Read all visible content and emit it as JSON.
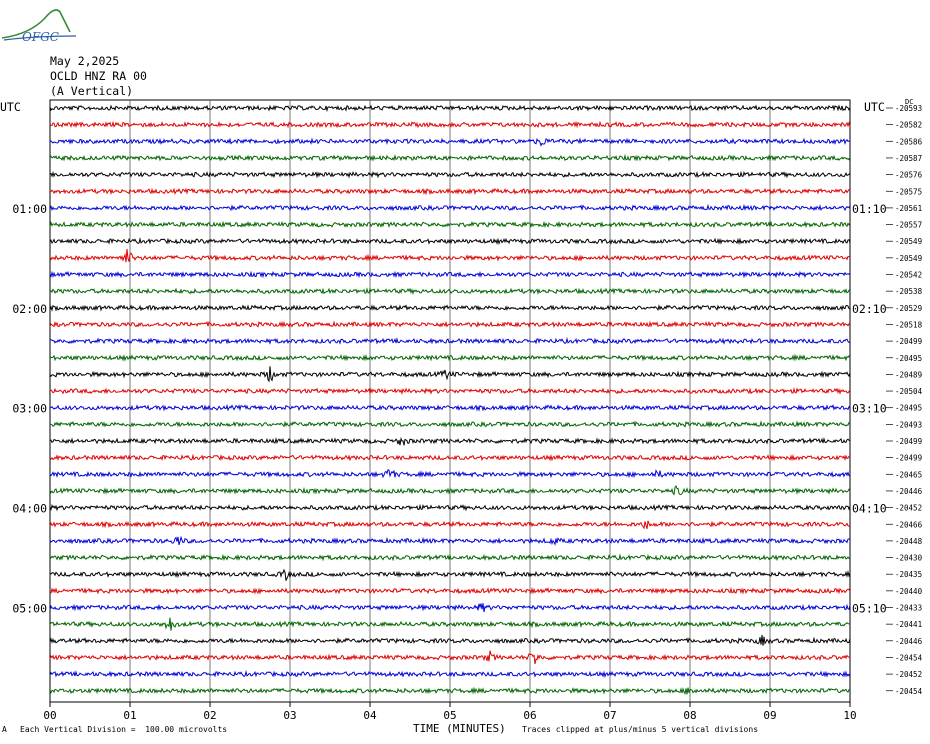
{
  "logo_text": "OFGC",
  "header": {
    "date": "May 2,2025",
    "station": "OCLD HNZ RA 00",
    "component": "(A Vertical)"
  },
  "left_axis_label": "UTC",
  "right_axis_label": "UTC",
  "dc_label": "DC",
  "footer": {
    "mark": "A",
    "scale": "Each Vertical Division =  100.00 microvolts",
    "clip": "Traces clipped at plus/minus 5 vertical divisions"
  },
  "chart_data": {
    "type": "line",
    "xlabel": "TIME (MINUTES)",
    "xlim": [
      0,
      10
    ],
    "x_ticks": [
      "00",
      "01",
      "02",
      "03",
      "04",
      "05",
      "06",
      "07",
      "08",
      "09",
      "10"
    ],
    "left_time_labels": [
      {
        "row": 6,
        "label": "01:00"
      },
      {
        "row": 12,
        "label": "02:00"
      },
      {
        "row": 18,
        "label": "03:00"
      },
      {
        "row": 24,
        "label": "04:00"
      },
      {
        "row": 30,
        "label": "05:00"
      }
    ],
    "right_time_labels": [
      {
        "row": 6,
        "label": "01:10"
      },
      {
        "row": 12,
        "label": "02:10"
      },
      {
        "row": 18,
        "label": "03:10"
      },
      {
        "row": 24,
        "label": "04:10"
      },
      {
        "row": 30,
        "label": "05:10"
      }
    ],
    "trace_colors": [
      "#000000",
      "#e00000",
      "#0000d8",
      "#006400"
    ],
    "dc_offsets": [
      "-20593",
      "-20582",
      "-20586",
      "-20587",
      "-20576",
      "-20575",
      "-20561",
      "-20557",
      "-20549",
      "-20549",
      "-20542",
      "-20538",
      "-20529",
      "-20518",
      "-20499",
      "-20495",
      "-20489",
      "-20504",
      "-20495",
      "-20493",
      "-20499",
      "-20499",
      "-20465",
      "-20446",
      "-20452",
      "-20466",
      "-20448",
      "-20430",
      "-20435",
      "-20440",
      "-20433",
      "-20441",
      "-20446",
      "-20454",
      "-20452",
      "-20454"
    ],
    "events": [
      {
        "row": 9,
        "minute": 0.97,
        "amp": 10
      },
      {
        "row": 2,
        "minute": 6.15,
        "amp": 5
      },
      {
        "row": 16,
        "minute": 2.75,
        "amp": 9
      },
      {
        "row": 16,
        "minute": 4.95,
        "amp": 5
      },
      {
        "row": 20,
        "minute": 4.4,
        "amp": 6
      },
      {
        "row": 22,
        "minute": 4.25,
        "amp": 8
      },
      {
        "row": 22,
        "minute": 7.6,
        "amp": 4
      },
      {
        "row": 23,
        "minute": 7.85,
        "amp": 6
      },
      {
        "row": 25,
        "minute": 7.45,
        "amp": 5
      },
      {
        "row": 26,
        "minute": 1.6,
        "amp": 6
      },
      {
        "row": 26,
        "minute": 6.3,
        "amp": 4
      },
      {
        "row": 28,
        "minute": 2.95,
        "amp": 5
      },
      {
        "row": 31,
        "minute": 1.5,
        "amp": 8
      },
      {
        "row": 30,
        "minute": 5.4,
        "amp": 5
      },
      {
        "row": 32,
        "minute": 8.9,
        "amp": 5
      },
      {
        "row": 33,
        "minute": 6.05,
        "amp": 9
      },
      {
        "row": 33,
        "minute": 5.5,
        "amp": 5
      },
      {
        "row": 35,
        "minute": 8.0,
        "amp": 5
      }
    ]
  }
}
